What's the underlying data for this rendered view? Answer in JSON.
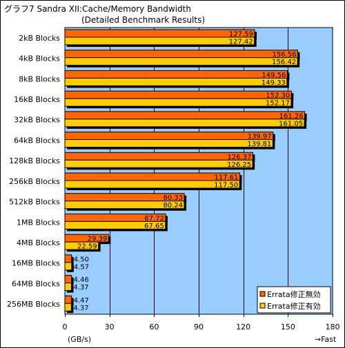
{
  "chart_data": {
    "type": "bar",
    "orientation": "horizontal",
    "title_line1": "グラフ7  Sandra XII:Cache/Memory Bandwidth",
    "title_line2": "(Detailed Benchmark Results)",
    "xlabel": "(GB/s)",
    "direction_label": "→Fast",
    "xlim": [
      0,
      180
    ],
    "xticks": [
      0,
      30,
      60,
      90,
      120,
      150,
      180
    ],
    "grid": true,
    "legend_position": "bottom-right",
    "categories": [
      "2kB Blocks",
      "4kB Blocks",
      "8kB Blocks",
      "16kB Blocks",
      "32kB Blocks",
      "64kB Blocks",
      "128kB Blocks",
      "256kB Blocks",
      "512kB Blocks",
      "1MB Blocks",
      "4MB Blocks",
      "16MB Blocks",
      "64MB Blocks",
      "256MB Blocks"
    ],
    "series": [
      {
        "name": "Errata修正無効",
        "color": "#ff6600",
        "values": [
          127.59,
          156.56,
          149.56,
          152.3,
          161.26,
          139.97,
          126.37,
          117.61,
          80.33,
          67.72,
          29.39,
          4.5,
          4.46,
          4.47
        ],
        "labels": [
          "127.59",
          "156.56",
          "149.56",
          "152.30",
          "161.26",
          "139.97",
          "126.37",
          "117.61",
          "80.33",
          "67.72",
          "29.39",
          "4.50",
          "4.46",
          "4.47"
        ]
      },
      {
        "name": "Errata修正有効",
        "color": "#ffcc00",
        "values": [
          127.42,
          156.42,
          149.33,
          152.17,
          161.05,
          139.81,
          126.25,
          117.5,
          80.24,
          67.65,
          22.59,
          4.57,
          4.37,
          4.37
        ],
        "labels": [
          "127.42",
          "156.42",
          "149.33",
          "152.17",
          "161.05",
          "139.81",
          "126.25",
          "117.50",
          "80.24",
          "67.65",
          "22.59",
          "4.57",
          "4.37",
          "4.37"
        ]
      }
    ],
    "colors": {
      "plot_background": "#99ccff",
      "gridline": "#000000",
      "shadow": "#000000"
    }
  }
}
